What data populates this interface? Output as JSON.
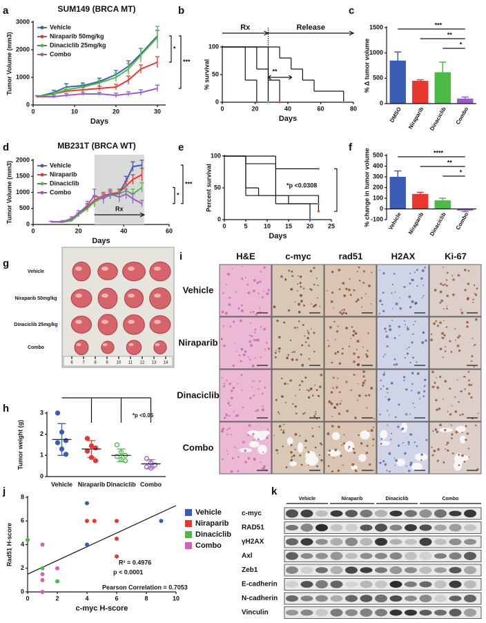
{
  "chart_data": [
    {
      "panel": "a",
      "type": "line",
      "title": "SUM149 (BRCA MT)",
      "x_label": "Days",
      "y_label": "Tumor Volume (mm3)",
      "x": [
        1,
        5,
        8,
        12,
        16,
        20,
        23,
        26,
        30
      ],
      "series": [
        {
          "name": "Vehicle",
          "color": "#3a5cb5",
          "values": [
            300,
            450,
            650,
            700,
            850,
            1100,
            1400,
            1850,
            2500
          ],
          "errors": [
            40,
            80,
            120,
            100,
            120,
            150,
            200,
            200,
            200
          ]
        },
        {
          "name": "Niraparib 50mg/kg",
          "color": "#e8372f",
          "values": [
            300,
            400,
            500,
            550,
            600,
            650,
            900,
            1300,
            1550
          ],
          "errors": [
            30,
            50,
            60,
            80,
            80,
            100,
            150,
            150,
            200
          ]
        },
        {
          "name": "Dinaciclib 25mg/kg",
          "color": "#4dba48",
          "values": [
            300,
            400,
            550,
            650,
            800,
            1000,
            1300,
            1800,
            2450
          ],
          "errors": [
            30,
            60,
            80,
            100,
            100,
            150,
            200,
            250,
            400
          ]
        },
        {
          "name": "Combo",
          "color": "#9c5cc6",
          "values": [
            300,
            300,
            350,
            400,
            400,
            350,
            400,
            450,
            600
          ],
          "errors": [
            20,
            50,
            60,
            60,
            60,
            80,
            80,
            100,
            120
          ]
        }
      ],
      "xlim": [
        0,
        32
      ],
      "xticks": [
        0,
        10,
        20,
        30
      ],
      "ylim": [
        0,
        3000
      ],
      "yticks": [
        0,
        1000,
        2000,
        3000
      ],
      "annotations": [
        "*",
        "***"
      ]
    },
    {
      "panel": "b",
      "type": "survival",
      "x_label": "Days",
      "y_label": "% survival",
      "phases": [
        "Rx",
        "Release"
      ],
      "rx_end": 28,
      "series": [
        {
          "color": "#3a5cb5",
          "x": [
            0,
            14,
            21
          ],
          "values": [
            100,
            40,
            0
          ]
        },
        {
          "color": "#e8372f",
          "x": [
            0,
            28,
            35
          ],
          "values": [
            100,
            40,
            0
          ]
        },
        {
          "color": "#4dba48",
          "x": [
            0,
            21,
            28
          ],
          "values": [
            100,
            60,
            0
          ]
        },
        {
          "color": "#9c5cc6",
          "x": [
            0,
            35,
            42,
            49,
            56,
            74
          ],
          "values": [
            100,
            80,
            60,
            40,
            20,
            0
          ]
        }
      ],
      "xlim": [
        0,
        80
      ],
      "xticks": [
        0,
        20,
        40,
        60,
        80
      ],
      "ylim": [
        0,
        100
      ],
      "yticks": [
        0,
        50,
        100
      ],
      "annotations": [
        "**"
      ]
    },
    {
      "panel": "c",
      "type": "bar",
      "y_label": "% Δ tumor volume",
      "categories": [
        "DMSO",
        "Niraparib",
        "Dinaciclib",
        "Combo"
      ],
      "values": [
        850,
        450,
        620,
        100
      ],
      "errors": [
        170,
        20,
        200,
        30
      ],
      "colors": [
        "#3a5cb5",
        "#e8372f",
        "#4dba48",
        "#9c5cc6"
      ],
      "ylim": [
        0,
        1500
      ],
      "yticks": [
        0,
        500,
        1000,
        1500
      ],
      "annotations": [
        "***",
        "**",
        "*"
      ]
    },
    {
      "panel": "d",
      "type": "line",
      "title": "MB231T (BRCA WT)",
      "x_label": "Days",
      "y_label": "Tumor Volume (mm3)",
      "x": [
        8,
        13,
        17,
        20,
        24,
        27,
        31,
        34,
        38,
        41,
        44,
        48
      ],
      "shade": [
        27,
        49
      ],
      "shade_label": "Rx",
      "series": [
        {
          "name": "Vehicle",
          "color": "#3a5cb5",
          "values": [
            80,
            80,
            150,
            300,
            550,
            700,
            850,
            900,
            1000,
            1350,
            1800,
            1850
          ],
          "errors": [
            20,
            20,
            40,
            60,
            100,
            150,
            100,
            100,
            100,
            150,
            150,
            150
          ]
        },
        {
          "name": "Niraparib",
          "color": "#e8372f",
          "values": [
            80,
            70,
            150,
            300,
            550,
            750,
            900,
            950,
            1000,
            1200,
            1400,
            1550
          ],
          "errors": [
            20,
            20,
            40,
            60,
            100,
            150,
            100,
            100,
            100,
            150,
            150,
            200
          ]
        },
        {
          "name": "Dinaciclib",
          "color": "#4dba48",
          "values": [
            80,
            70,
            120,
            300,
            500,
            700,
            850,
            900,
            950,
            1050,
            950,
            1150
          ],
          "errors": [
            20,
            20,
            40,
            60,
            100,
            150,
            100,
            100,
            100,
            150,
            150,
            150
          ]
        },
        {
          "name": "Combo",
          "color": "#9c5cc6",
          "values": [
            80,
            90,
            180,
            350,
            600,
            900,
            800,
            950,
            850,
            950,
            800,
            650
          ],
          "errors": [
            20,
            30,
            60,
            80,
            120,
            200,
            150,
            150,
            150,
            150,
            150,
            100
          ]
        }
      ],
      "xlim": [
        0,
        60
      ],
      "xticks": [
        0,
        20,
        40,
        60
      ],
      "ylim": [
        0,
        2000
      ],
      "yticks": [
        0,
        500,
        1000,
        1500,
        2000
      ],
      "annotations": [
        "***",
        "*"
      ]
    },
    {
      "panel": "e",
      "type": "survival",
      "x_label": "Days",
      "y_label": "Percent survival",
      "series": [
        {
          "color": "#3a5cb5",
          "x": [
            0,
            5,
            15,
            20
          ],
          "values": [
            100,
            38,
            25,
            0
          ]
        },
        {
          "color": "#e8372f",
          "x": [
            0,
            5,
            8,
            22
          ],
          "values": [
            100,
            50,
            38,
            13
          ]
        },
        {
          "color": "#4dba48",
          "x": [
            0,
            5,
            12,
            22
          ],
          "values": [
            100,
            88,
            25,
            25
          ]
        },
        {
          "color": "#9c5cc6",
          "x": [
            0,
            12,
            22
          ],
          "values": [
            100,
            80,
            80
          ]
        }
      ],
      "xlim": [
        0,
        25
      ],
      "xticks": [
        0,
        5,
        10,
        15,
        20,
        25
      ],
      "ylim": [
        0,
        100
      ],
      "yticks": [
        0,
        50,
        100
      ],
      "annotations": [
        "*p <0.0308"
      ]
    },
    {
      "panel": "f",
      "type": "bar",
      "y_label": "% change in tumor volume",
      "categories": [
        "Vehicle",
        "Niraparib",
        "Dinaciclib",
        "Combo"
      ],
      "values": [
        300,
        140,
        80,
        -15
      ],
      "errors": [
        55,
        15,
        20,
        10
      ],
      "colors": [
        "#3a5cb5",
        "#e8372f",
        "#4dba48",
        "#9c5cc6"
      ],
      "ylim": [
        -100,
        500
      ],
      "yticks": [
        -100,
        0,
        100,
        200,
        300,
        400,
        500
      ],
      "annotations": [
        "****",
        "**",
        "*"
      ]
    },
    {
      "panel": "h",
      "type": "dot",
      "y_label": "Tumor weight (g)",
      "categories": [
        "Vehicle",
        "Niraparib",
        "Dinaciclib",
        "Combo"
      ],
      "colors": [
        "#3a5cb5",
        "#e8372f",
        "#4dba48",
        "#9c5cc6"
      ],
      "points": [
        [
          3.0,
          2.1,
          1.7,
          1.6,
          1.3,
          1.05
        ],
        [
          1.8,
          1.45,
          1.35,
          1.2,
          0.9,
          0.75
        ],
        [
          1.5,
          1.15,
          1.0,
          0.95,
          0.8,
          0.75
        ],
        [
          0.85,
          0.65,
          0.55,
          0.45,
          0.4
        ]
      ],
      "means": [
        1.75,
        1.3,
        1.0,
        0.6
      ],
      "sds": [
        0.75,
        0.4,
        0.3,
        0.2
      ],
      "ylim": [
        0,
        3
      ],
      "yticks": [
        0,
        1,
        2,
        3
      ],
      "annotations": [
        "*p <0.05"
      ]
    },
    {
      "panel": "j",
      "type": "scatter",
      "x_label": "c-myc H-score",
      "y_label": "Rad51 H-score",
      "series": [
        {
          "name": "Vehicle",
          "color": "#3a5cb5",
          "x": [
            4,
            4,
            9
          ],
          "values": [
            7.5,
            4,
            6
          ]
        },
        {
          "name": "Niraparib",
          "color": "#e8372f",
          "x": [
            4,
            4.5,
            6,
            6,
            6
          ],
          "values": [
            6,
            6,
            6,
            4.5,
            3
          ]
        },
        {
          "name": "Dinaciclib",
          "color": "#4dba48",
          "x": [
            0,
            1,
            2
          ],
          "values": [
            4.4,
            2,
            0.9
          ]
        },
        {
          "name": "Combo",
          "color": "#d35fbf",
          "x": [
            1,
            1,
            1,
            1,
            2
          ],
          "values": [
            4,
            1.5,
            1,
            0,
            2
          ]
        }
      ],
      "fit": {
        "intercept": 1.5,
        "slope": 0.58
      },
      "xlim": [
        0,
        10
      ],
      "xticks": [
        0,
        2,
        4,
        6,
        8,
        10
      ],
      "ylim": [
        0,
        8
      ],
      "yticks": [
        0,
        2,
        4,
        6,
        8
      ],
      "annotations": [
        "R² = 0.4976",
        "p < 0.0001",
        "Pearson Correlation = 0.7053"
      ]
    }
  ],
  "photo": {
    "panel": "g",
    "rows": [
      "Vehicle",
      "Niraparib 50mg/kg",
      "Dinaciclib 25mg/kg",
      "Combo"
    ],
    "ruler": [
      6,
      7,
      8,
      9,
      10,
      11,
      12,
      13,
      14
    ]
  },
  "histology": {
    "panel": "i",
    "columns": [
      "H&E",
      "c-myc",
      "rad51",
      "H2AX",
      "Ki-67"
    ],
    "rows": [
      "Vehicle",
      "Niraparib",
      "Dinaciclib",
      "Combo"
    ]
  },
  "blot": {
    "panel": "k",
    "groups": [
      "Vehicle",
      "Niraparib",
      "Dinaciclib",
      "Combo"
    ],
    "rows": [
      "c-myc",
      "RAD51",
      "γH2AX",
      "Axl",
      "Zeb1",
      "E-cadherin",
      "N-cadherin",
      "Vinculin"
    ]
  }
}
